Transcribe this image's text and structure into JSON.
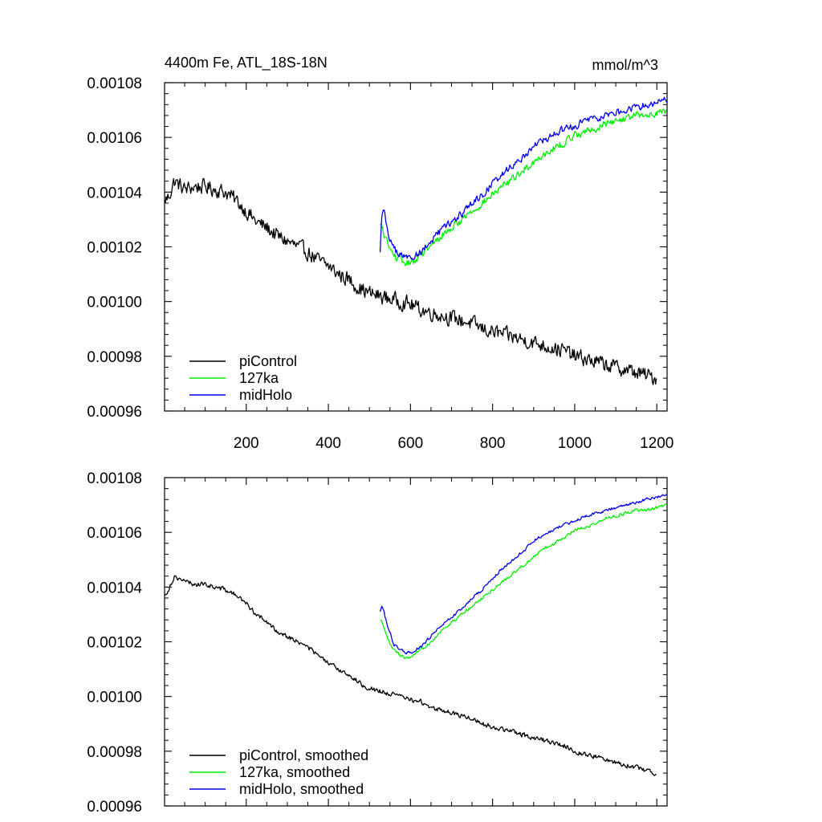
{
  "chart_data": [
    {
      "type": "line",
      "panel": "raw",
      "title_left": "4400m Fe, ATL_18S-18N",
      "title_right": "mmol/m^3",
      "xlabel": "",
      "ylabel": "",
      "xlim": [
        1,
        1225
      ],
      "ylim": [
        0.00096,
        0.00108
      ],
      "grid": false,
      "legend_position": "bottom-left",
      "x_tick_values": [
        200,
        400,
        600,
        800,
        1000,
        1200
      ],
      "x_tick_labels": [
        "200",
        "400",
        "600",
        "800",
        "1000",
        "1200"
      ],
      "y_tick_values": [
        0.00096,
        0.00098,
        0.001,
        0.00102,
        0.00104,
        0.00106,
        0.00108
      ],
      "y_tick_labels": [
        "0.00096",
        "0.00098",
        "0.00100",
        "0.00102",
        "0.00104",
        "0.00106",
        "0.00108"
      ],
      "series": [
        {
          "name": "piControl",
          "color": "#000000",
          "noise": 2.5e-06,
          "x": [
            1,
            10,
            25,
            50,
            75,
            100,
            125,
            150,
            175,
            200,
            225,
            250,
            275,
            300,
            325,
            350,
            375,
            400,
            425,
            450,
            475,
            500,
            525,
            550,
            575,
            600,
            625,
            650,
            675,
            700,
            725,
            750,
            775,
            800,
            825,
            850,
            875,
            900,
            925,
            950,
            975,
            1000,
            1025,
            1050,
            1075,
            1100,
            1125,
            1150,
            1175,
            1200
          ],
          "values": [
            0.001037,
            0.001038,
            0.001044,
            0.001041,
            0.001042,
            0.001042,
            0.001041,
            0.00104,
            0.001037,
            0.001033,
            0.001029,
            0.001027,
            0.001024,
            0.001022,
            0.00102,
            0.001018,
            0.001015,
            0.001013,
            0.00101,
            0.001008,
            0.001005,
            0.001003,
            0.001002,
            0.001001,
            0.001,
            0.000999,
            0.000997,
            0.000996,
            0.000995,
            0.000994,
            0.000993,
            0.000992,
            0.00099,
            0.000989,
            0.000988,
            0.000987,
            0.000986,
            0.000985,
            0.000984,
            0.000983,
            0.000982,
            0.00098,
            0.000979,
            0.000978,
            0.000977,
            0.000976,
            0.000975,
            0.000974,
            0.000973,
            0.000972
          ]
        },
        {
          "name": "127ka",
          "color": "#00ee00",
          "noise": 1.2e-06,
          "x": [
            526,
            530,
            540,
            550,
            560,
            575,
            590,
            600,
            610,
            625,
            650,
            675,
            700,
            725,
            750,
            775,
            800,
            825,
            850,
            875,
            900,
            925,
            950,
            975,
            1000,
            1025,
            1050,
            1075,
            1100,
            1125,
            1150,
            1175,
            1200,
            1225
          ],
          "values": [
            0.001028,
            0.001027,
            0.001023,
            0.001019,
            0.001017,
            0.001015,
            0.001014,
            0.001014,
            0.001015,
            0.001017,
            0.00102,
            0.001024,
            0.001027,
            0.00103,
            0.001033,
            0.001036,
            0.001039,
            0.001042,
            0.001045,
            0.001048,
            0.001051,
            0.001054,
            0.001056,
            0.001058,
            0.001061,
            0.001062,
            0.001063,
            0.001065,
            0.001066,
            0.001067,
            0.001068,
            0.001068,
            0.001069,
            0.00107
          ]
        },
        {
          "name": "midHolo",
          "color": "#0000ee",
          "noise": 1.2e-06,
          "x": [
            526,
            530,
            535,
            540,
            550,
            560,
            575,
            590,
            600,
            610,
            625,
            650,
            675,
            700,
            725,
            750,
            775,
            800,
            825,
            850,
            875,
            900,
            925,
            950,
            975,
            1000,
            1025,
            1050,
            1075,
            1100,
            1125,
            1150,
            1175,
            1200,
            1225
          ],
          "values": [
            0.001018,
            0.001032,
            0.001034,
            0.001029,
            0.001023,
            0.001019,
            0.001017,
            0.001016,
            0.001016,
            0.001017,
            0.001018,
            0.001022,
            0.001026,
            0.001029,
            0.001032,
            0.001036,
            0.001039,
            0.001043,
            0.001047,
            0.00105,
            0.001053,
            0.001057,
            0.001059,
            0.001061,
            0.001063,
            0.001064,
            0.001066,
            0.001067,
            0.001068,
            0.001069,
            0.00107,
            0.001071,
            0.001072,
            0.001073,
            0.001074
          ]
        }
      ]
    },
    {
      "type": "line",
      "panel": "smoothed",
      "xlabel": "",
      "ylabel": "",
      "xlim": [
        1,
        1225
      ],
      "ylim": [
        0.00096,
        0.00108
      ],
      "grid": false,
      "legend_position": "bottom-left",
      "x_tick_values": [
        200,
        400,
        600,
        800,
        1000,
        1200
      ],
      "y_tick_values": [
        0.00096,
        0.00098,
        0.001,
        0.00102,
        0.00104,
        0.00106,
        0.00108
      ],
      "y_tick_labels": [
        "0.00096",
        "0.00098",
        "0.00100",
        "0.00102",
        "0.00104",
        "0.00106",
        "0.00108"
      ],
      "series": [
        {
          "name": "piControl, smoothed",
          "color": "#000000",
          "noise": 8e-07,
          "x": [
            1,
            10,
            25,
            50,
            75,
            100,
            125,
            150,
            175,
            200,
            225,
            250,
            275,
            300,
            325,
            350,
            375,
            400,
            425,
            450,
            475,
            500,
            525,
            550,
            575,
            600,
            625,
            650,
            675,
            700,
            725,
            750,
            775,
            800,
            825,
            850,
            875,
            900,
            925,
            950,
            975,
            1000,
            1025,
            1050,
            1075,
            1100,
            1125,
            1150,
            1175,
            1200
          ],
          "values": [
            0.001037,
            0.001039,
            0.001044,
            0.001042,
            0.001041,
            0.001041,
            0.00104,
            0.001039,
            0.001037,
            0.001034,
            0.00103,
            0.001027,
            0.001024,
            0.001022,
            0.00102,
            0.001018,
            0.001015,
            0.001012,
            0.00101,
            0.001008,
            0.001005,
            0.001003,
            0.001002,
            0.001001,
            0.001,
            0.000999,
            0.000998,
            0.000996,
            0.000995,
            0.000994,
            0.000993,
            0.000992,
            0.00099,
            0.000989,
            0.000988,
            0.000987,
            0.000986,
            0.000985,
            0.000984,
            0.000983,
            0.000982,
            0.00098,
            0.000979,
            0.000978,
            0.000977,
            0.000976,
            0.000975,
            0.000974,
            0.000973,
            0.000972
          ]
        },
        {
          "name": "127ka, smoothed",
          "color": "#00ee00",
          "noise": 5e-07,
          "x": [
            526,
            530,
            540,
            550,
            560,
            575,
            590,
            600,
            610,
            625,
            650,
            675,
            700,
            725,
            750,
            775,
            800,
            825,
            850,
            875,
            900,
            925,
            950,
            975,
            1000,
            1025,
            1050,
            1075,
            1100,
            1125,
            1150,
            1175,
            1200,
            1225
          ],
          "values": [
            0.001028,
            0.001027,
            0.001023,
            0.001019,
            0.001017,
            0.001015,
            0.001014,
            0.001014,
            0.001015,
            0.001017,
            0.00102,
            0.001024,
            0.001027,
            0.00103,
            0.001033,
            0.001036,
            0.001039,
            0.001042,
            0.001045,
            0.001048,
            0.001051,
            0.001054,
            0.001056,
            0.001058,
            0.001061,
            0.001062,
            0.001063,
            0.001065,
            0.001066,
            0.001067,
            0.001068,
            0.001068,
            0.001069,
            0.00107
          ]
        },
        {
          "name": "midHolo, smoothed",
          "color": "#0000ee",
          "noise": 5e-07,
          "x": [
            526,
            530,
            535,
            540,
            550,
            560,
            575,
            590,
            600,
            610,
            625,
            650,
            675,
            700,
            725,
            750,
            775,
            800,
            825,
            850,
            875,
            900,
            925,
            950,
            975,
            1000,
            1025,
            1050,
            1075,
            1100,
            1125,
            1150,
            1175,
            1200,
            1225
          ],
          "values": [
            0.001031,
            0.001033,
            0.001032,
            0.001028,
            0.001023,
            0.001019,
            0.001017,
            0.001016,
            0.001016,
            0.001017,
            0.001018,
            0.001022,
            0.001026,
            0.001029,
            0.001032,
            0.001036,
            0.001039,
            0.001043,
            0.001047,
            0.00105,
            0.001053,
            0.001057,
            0.001059,
            0.001061,
            0.001063,
            0.001064,
            0.001066,
            0.001067,
            0.001068,
            0.001069,
            0.00107,
            0.001071,
            0.001072,
            0.001073,
            0.001074
          ]
        }
      ]
    }
  ]
}
